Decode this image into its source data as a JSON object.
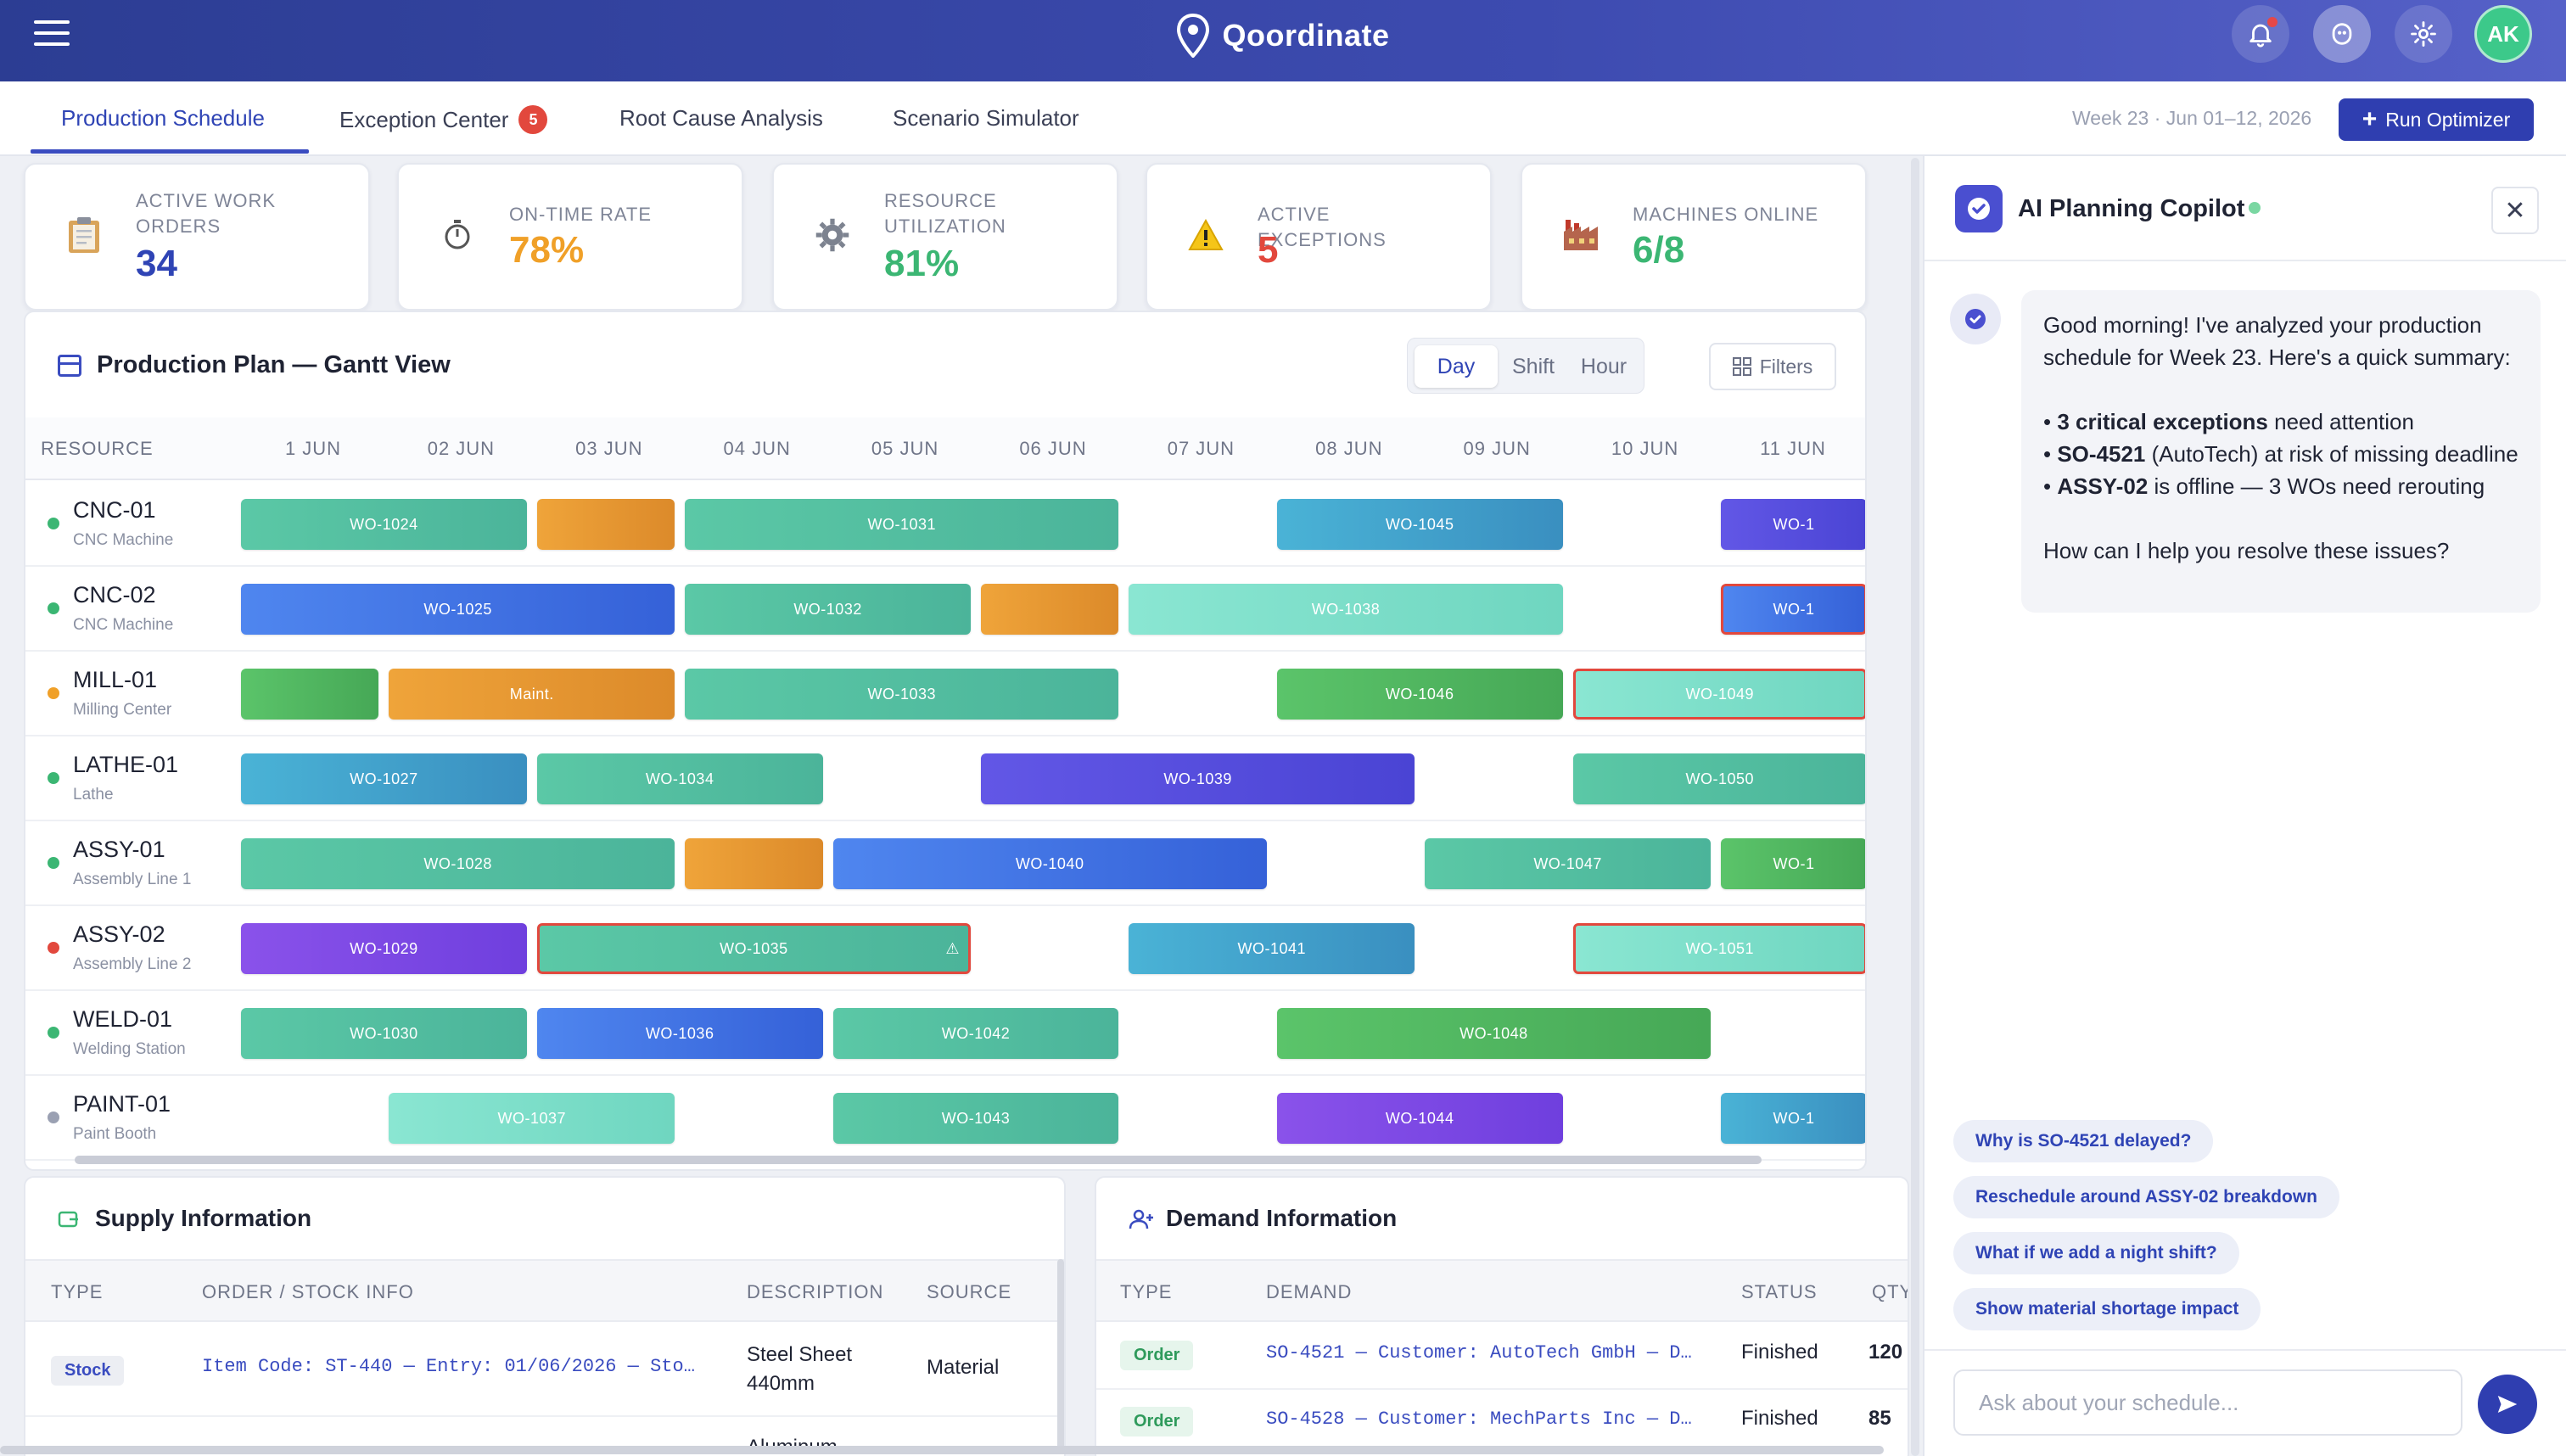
{
  "app": {
    "name": "Qoordinate",
    "user_initials": "AK"
  },
  "tabs": [
    {
      "label": "Production Schedule"
    },
    {
      "label": "Exception Center",
      "badge": "5"
    },
    {
      "label": "Root Cause Analysis"
    },
    {
      "label": "Scenario Simulator"
    }
  ],
  "week": {
    "label": "Week 23 · Jun 01–12, 2026"
  },
  "actions": {
    "run_optimizer": "Run Optimizer"
  },
  "kpis": [
    {
      "label": "ACTIVE WORK ORDERS",
      "value": "34",
      "color": "#2f44b5",
      "icon": "clipboard-icon"
    },
    {
      "label": "ON-TIME RATE",
      "value": "78%",
      "color": "#f0a028",
      "icon": "stopwatch-icon"
    },
    {
      "label": "RESOURCE UTILIZATION",
      "value": "81%",
      "color": "#3bb673",
      "icon": "gear-icon"
    },
    {
      "label": "ACTIVE EXCEPTIONS",
      "value": "5",
      "color": "#e2483d",
      "icon": "warning-icon"
    },
    {
      "label": "MACHINES ONLINE",
      "value": "6/8",
      "color": "#3bb673",
      "icon": "factory-icon"
    }
  ],
  "gantt": {
    "title": "Production Plan — Gantt View",
    "views": [
      "Day",
      "Shift",
      "Hour"
    ],
    "active_view": "Day",
    "filters": "Filters",
    "resource_header": "RESOURCE",
    "days": [
      "1 JUN",
      "02 JUN",
      "03 JUN",
      "04 JUN",
      "05 JUN",
      "06 JUN",
      "07 JUN",
      "08 JUN",
      "09 JUN",
      "10 JUN",
      "11 JUN"
    ],
    "rows": [
      {
        "name": "CNC-01",
        "type": "CNC Machine",
        "status": "#3bb673",
        "bars": [
          {
            "label": "WO-1024",
            "start": 0,
            "span": 2,
            "color": "teal"
          },
          {
            "label": "",
            "start": 2,
            "span": 1,
            "color": "orange"
          },
          {
            "label": "WO-1031",
            "start": 3,
            "span": 3,
            "color": "teal"
          },
          {
            "label": "WO-1045",
            "start": 7,
            "span": 2,
            "color": "blue"
          },
          {
            "label": "WO-1",
            "start": 10,
            "span": 1.2,
            "color": "indigo"
          }
        ]
      },
      {
        "name": "CNC-02",
        "type": "CNC Machine",
        "status": "#3bb673",
        "bars": [
          {
            "label": "WO-1025",
            "start": 0,
            "span": 3,
            "color": "royal"
          },
          {
            "label": "WO-1032",
            "start": 3,
            "span": 2,
            "color": "teal"
          },
          {
            "label": "",
            "start": 5,
            "span": 1,
            "color": "orange"
          },
          {
            "label": "WO-1038",
            "start": 6,
            "span": 3,
            "color": "mint"
          },
          {
            "label": "WO-1",
            "start": 10,
            "span": 1.2,
            "color": "royal",
            "flag": true
          }
        ]
      },
      {
        "name": "MILL-01",
        "type": "Milling Center",
        "status": "#f0a028",
        "bars": [
          {
            "label": "",
            "start": 0,
            "span": 1,
            "color": "green"
          },
          {
            "label": "Maint.",
            "start": 1,
            "span": 2,
            "color": "orange"
          },
          {
            "label": "WO-1033",
            "start": 3,
            "span": 3,
            "color": "teal"
          },
          {
            "label": "WO-1046",
            "start": 7,
            "span": 2,
            "color": "green"
          },
          {
            "label": "WO-1049",
            "start": 9,
            "span": 2.2,
            "color": "mint",
            "flag": true
          }
        ]
      },
      {
        "name": "LATHE-01",
        "type": "Lathe",
        "status": "#3bb673",
        "bars": [
          {
            "label": "WO-1027",
            "start": 0,
            "span": 2,
            "color": "blue"
          },
          {
            "label": "WO-1034",
            "start": 2,
            "span": 2,
            "color": "teal"
          },
          {
            "label": "WO-1039",
            "start": 5,
            "span": 3,
            "color": "indigo"
          },
          {
            "label": "WO-1050",
            "start": 9,
            "span": 2.2,
            "color": "teal"
          }
        ]
      },
      {
        "name": "ASSY-01",
        "type": "Assembly Line 1",
        "status": "#3bb673",
        "bars": [
          {
            "label": "WO-1028",
            "start": 0,
            "span": 3,
            "color": "teal"
          },
          {
            "label": "",
            "start": 3,
            "span": 1,
            "color": "orange"
          },
          {
            "label": "WO-1040",
            "start": 4,
            "span": 3,
            "color": "royal"
          },
          {
            "label": "WO-1047",
            "start": 8,
            "span": 2,
            "color": "teal"
          },
          {
            "label": "WO-1",
            "start": 10,
            "span": 1.2,
            "color": "green"
          }
        ]
      },
      {
        "name": "ASSY-02",
        "type": "Assembly Line 2",
        "status": "#e2483d",
        "bars": [
          {
            "label": "WO-1029",
            "start": 0,
            "span": 2,
            "color": "purple"
          },
          {
            "label": "WO-1035",
            "start": 2,
            "span": 3,
            "color": "teal",
            "flag": true,
            "warn": true
          },
          {
            "label": "WO-1041",
            "start": 6,
            "span": 2,
            "color": "blue"
          },
          {
            "label": "WO-1051",
            "start": 9,
            "span": 2.2,
            "color": "mint",
            "flag": true
          }
        ]
      },
      {
        "name": "WELD-01",
        "type": "Welding Station",
        "status": "#3bb673",
        "bars": [
          {
            "label": "WO-1030",
            "start": 0,
            "span": 2,
            "color": "teal"
          },
          {
            "label": "WO-1036",
            "start": 2,
            "span": 2,
            "color": "royal"
          },
          {
            "label": "WO-1042",
            "start": 4,
            "span": 2,
            "color": "teal"
          },
          {
            "label": "WO-1048",
            "start": 7,
            "span": 3,
            "color": "green"
          }
        ]
      },
      {
        "name": "PAINT-01",
        "type": "Paint Booth",
        "status": "#9aa0b2",
        "bars": [
          {
            "label": "WO-1037",
            "start": 1,
            "span": 2,
            "color": "mint"
          },
          {
            "label": "WO-1043",
            "start": 4,
            "span": 2,
            "color": "teal"
          },
          {
            "label": "WO-1044",
            "start": 7,
            "span": 2,
            "color": "purple"
          },
          {
            "label": "WO-1",
            "start": 10,
            "span": 1.2,
            "color": "blue"
          }
        ]
      }
    ]
  },
  "supply": {
    "title": "Supply Information",
    "columns": [
      "TYPE",
      "ORDER / STOCK INFO",
      "DESCRIPTION",
      "SOURCE"
    ],
    "rows": [
      {
        "type": "Stock",
        "info": "Item Code: ST-440 — Entry: 01/06/2026 — Sto…",
        "description": "Steel Sheet 440mm",
        "source": "Material"
      },
      {
        "type": "",
        "info": "",
        "description": "Aluminum",
        "source": ""
      }
    ]
  },
  "demand": {
    "title": "Demand Information",
    "columns": [
      "TYPE",
      "DEMAND",
      "STATUS",
      "QTY"
    ],
    "rows": [
      {
        "type": "Order",
        "demand": "SO-4521 — Customer: AutoTech GmbH — D…",
        "status": "Finished",
        "qty": "120"
      },
      {
        "type": "Order",
        "demand": "SO-4528 — Customer: MechParts Inc — D…",
        "status": "Finished",
        "qty": "85"
      }
    ]
  },
  "copilot": {
    "title": "AI Planning Copilot",
    "greeting": "Good morning! I've analyzed your production schedule for Week 23. Here's a quick summary:",
    "bullets": [
      {
        "bold": "3 critical exceptions",
        "rest": " need attention"
      },
      {
        "bold": "SO-4521",
        "rest": " (AutoTech) at risk of missing deadline"
      },
      {
        "bold": "ASSY-02",
        "rest": " is offline — 3 WOs need rerouting"
      }
    ],
    "question": "How can I help you resolve these issues?",
    "suggestions": [
      "Why is SO-4521 delayed?",
      "Reschedule around ASSY-02 breakdown",
      "What if we add a night shift?",
      "Show material shortage impact"
    ],
    "input_placeholder": "Ask about your schedule..."
  },
  "palette": {
    "teal": [
      "#5bc8a6",
      "#4bb49a"
    ],
    "mint": [
      "#8ae6d2",
      "#6fd6c0"
    ],
    "orange": [
      "#efa43a",
      "#dc8a2a"
    ],
    "blue": [
      "#4ab3d6",
      "#3a8fc0"
    ],
    "royal": [
      "#4f86ef",
      "#3561d8"
    ],
    "indigo": [
      "#6257e6",
      "#4a44d4"
    ],
    "purple": [
      "#8a52ea",
      "#6f3fde"
    ],
    "green": [
      "#5bc46a",
      "#46a856"
    ]
  }
}
